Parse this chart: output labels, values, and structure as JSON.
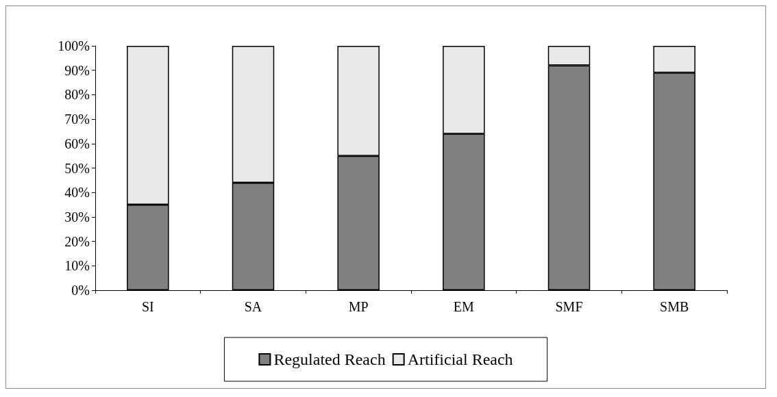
{
  "chart_data": {
    "type": "bar",
    "stacked": true,
    "categories": [
      "SI",
      "SA",
      "MP",
      "EM",
      "SMF",
      "SMB"
    ],
    "series": [
      {
        "name": "Regulated Reach",
        "color": "#808080",
        "values": [
          35,
          44,
          55,
          64,
          92,
          89
        ]
      },
      {
        "name": "Artificial Reach",
        "color": "#e8e8e8",
        "values": [
          65,
          56,
          45,
          36,
          8,
          11
        ]
      }
    ],
    "ylim": [
      0,
      100
    ],
    "yticks": [
      {
        "value": 0,
        "label": "0%"
      },
      {
        "value": 10,
        "label": "10%"
      },
      {
        "value": 20,
        "label": "20%"
      },
      {
        "value": 30,
        "label": "30%"
      },
      {
        "value": 40,
        "label": "40%"
      },
      {
        "value": 50,
        "label": "50%"
      },
      {
        "value": 60,
        "label": "60%"
      },
      {
        "value": 70,
        "label": "70%"
      },
      {
        "value": 80,
        "label": "80%"
      },
      {
        "value": 90,
        "label": "90%"
      },
      {
        "value": 100,
        "label": "100%"
      }
    ],
    "grid": false,
    "legend": "bottom"
  }
}
